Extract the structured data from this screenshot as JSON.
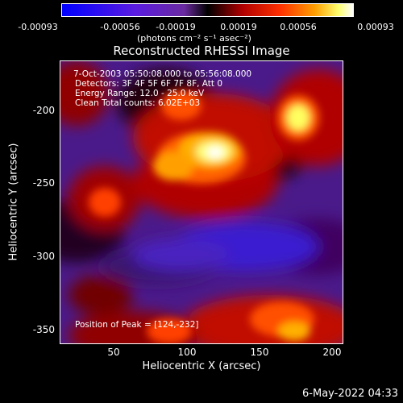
{
  "colorbar": {
    "ticks": [
      "-0.00093",
      "-0.00056",
      "-0.00019",
      "0.00019",
      "0.00056",
      "0.00093"
    ],
    "unit": "(photons cm⁻² s⁻¹ asec⁻²)",
    "colors": [
      "#0000ff",
      "#3a00d8",
      "#7a3cbf",
      "#000000",
      "#a00000",
      "#ff2a00",
      "#ff9a00",
      "#ffff80",
      "#ffffff"
    ]
  },
  "image": {
    "title": "Reconstructed RHESSI Image",
    "lines": [
      "7-Oct-2003 05:50:08.000 to 05:56:08.000",
      "Detectors: 3F 4F 5F 6F 7F 8F, Att 0",
      "Energy Range: 12.0 - 25.0 keV",
      "Clean     Total counts: 6.02E+03"
    ],
    "peak": "Position of Peak = [124,-232]"
  },
  "axes": {
    "xlabel": "Heliocentric X (arcsec)",
    "ylabel": "Heliocentric Y (arcsec)",
    "xticks": [
      "50",
      "100",
      "150",
      "200"
    ],
    "yticks": [
      "-200",
      "-250",
      "-300",
      "-350"
    ]
  },
  "timestamp": "6-May-2022 04:33"
}
